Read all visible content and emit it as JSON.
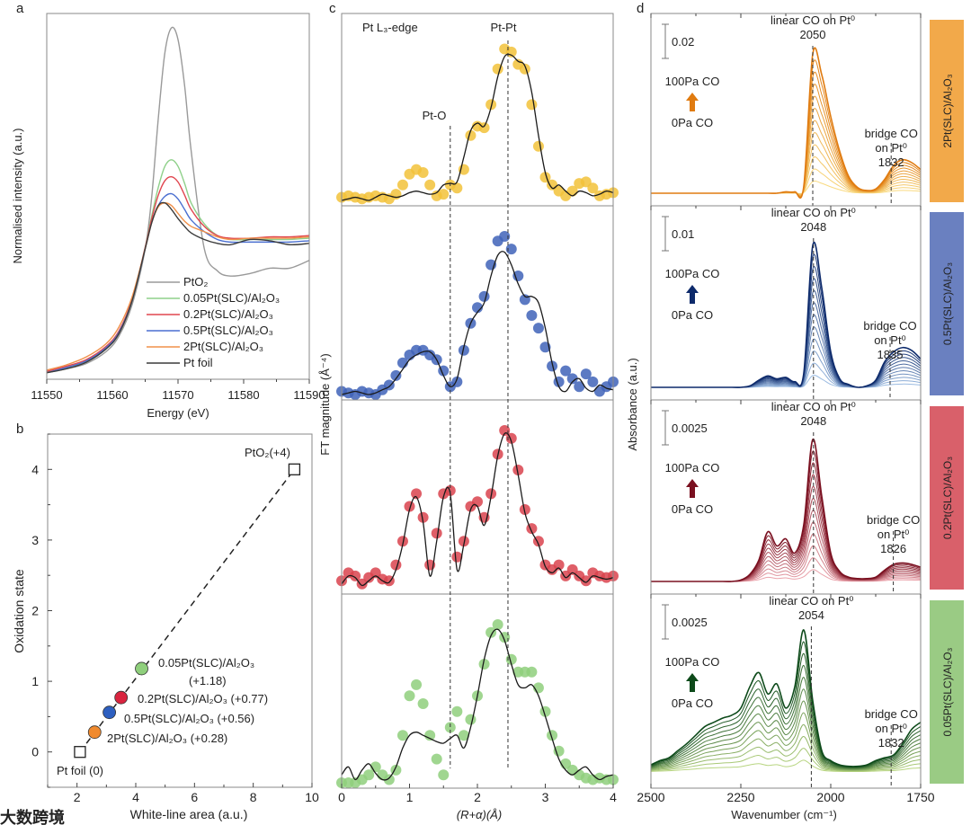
{
  "watermark": "大数跨境",
  "chart_data": [
    {
      "panel": "a",
      "type": "line",
      "xlabel": "Energy (eV)",
      "ylabel": "Normalised intensity (a.u.)",
      "xlim": [
        11550,
        11590
      ],
      "ylim": [
        -0.05,
        2.75
      ],
      "xticks": [
        "11550",
        "11560",
        "11570",
        "11580",
        "11590"
      ],
      "legend_position": "bottom-right",
      "x": [
        11550,
        11553,
        11556,
        11559,
        11561,
        11563,
        11565,
        11566,
        11567,
        11568,
        11569,
        11570,
        11571,
        11572,
        11574,
        11576,
        11578,
        11581,
        11584,
        11587,
        11590
      ],
      "series": [
        {
          "name": "PtO₂",
          "color": "#9a9a9a",
          "values": [
            0,
            0.03,
            0.07,
            0.16,
            0.28,
            0.52,
            0.95,
            1.35,
            1.95,
            2.45,
            2.64,
            2.55,
            2.2,
            1.7,
            0.95,
            0.78,
            0.74,
            0.76,
            0.8,
            0.8,
            0.86
          ]
        },
        {
          "name": "0.05Pt(SLC)/Al₂O₃",
          "color": "#8fd08a",
          "values": [
            0,
            0.04,
            0.09,
            0.19,
            0.31,
            0.55,
            0.96,
            1.2,
            1.42,
            1.58,
            1.63,
            1.58,
            1.45,
            1.3,
            1.14,
            1.05,
            1.02,
            1.02,
            1.02,
            1.02,
            1.03
          ]
        },
        {
          "name": "0.2Pt(SLC)/Al₂O₃",
          "color": "#e0464f",
          "values": [
            0.01,
            0.05,
            0.1,
            0.2,
            0.32,
            0.56,
            0.96,
            1.18,
            1.36,
            1.47,
            1.5,
            1.46,
            1.36,
            1.25,
            1.12,
            1.05,
            1.03,
            1.03,
            1.04,
            1.04,
            1.05
          ]
        },
        {
          "name": "0.5Pt(SLC)/Al₂O₃",
          "color": "#4a6fd0",
          "values": [
            0,
            0.04,
            0.09,
            0.19,
            0.31,
            0.55,
            0.95,
            1.15,
            1.28,
            1.35,
            1.37,
            1.33,
            1.25,
            1.17,
            1.08,
            1.02,
            1.0,
            1.0,
            1.0,
            1.0,
            1.01
          ]
        },
        {
          "name": "2Pt(SLC)/Al₂O₃",
          "color": "#f0904a",
          "values": [
            0.02,
            0.06,
            0.12,
            0.22,
            0.35,
            0.58,
            0.95,
            1.15,
            1.27,
            1.3,
            1.28,
            1.22,
            1.16,
            1.12,
            1.08,
            1.04,
            1.02,
            1.03,
            1.03,
            1.03,
            1.04
          ]
        },
        {
          "name": "Pt foil",
          "color": "#3a3a3a",
          "values": [
            0,
            0.03,
            0.08,
            0.18,
            0.3,
            0.55,
            0.95,
            1.15,
            1.28,
            1.3,
            1.25,
            1.18,
            1.12,
            1.07,
            1.02,
            0.99,
            0.98,
            1.02,
            1.01,
            0.98,
            0.99
          ]
        }
      ]
    },
    {
      "panel": "b",
      "type": "scatter",
      "xlabel": "White-line area (a.u.)",
      "ylabel": "Oxidation state",
      "xlim": [
        1,
        10
      ],
      "ylim": [
        -0.5,
        4.5
      ],
      "xticks": [
        "2",
        "4",
        "6",
        "8",
        "10"
      ],
      "yticks": [
        "0",
        "1",
        "2",
        "3",
        "4"
      ],
      "fit_line": {
        "from": [
          2.1,
          0
        ],
        "to": [
          9.4,
          4
        ],
        "style": "dashed"
      },
      "points": [
        {
          "label": "Pt foil (0)",
          "x": 2.1,
          "y": 0,
          "marker": "square",
          "color": "#222222"
        },
        {
          "label": "2Pt(SLC)/Al₂O₃ (+0.28)",
          "x": 2.6,
          "y": 0.28,
          "marker": "circle",
          "color": "#f08a2e"
        },
        {
          "label": "0.5Pt(SLC)/Al₂O₃ (+0.56)",
          "x": 3.1,
          "y": 0.56,
          "marker": "circle",
          "color": "#2d5fc0"
        },
        {
          "label": "0.2Pt(SLC)/Al₂O₃ (+0.77)",
          "x": 3.5,
          "y": 0.77,
          "marker": "circle",
          "color": "#d9243f"
        },
        {
          "label": "0.05Pt(SLC)/Al₂O₃",
          "label2": "(+1.18)",
          "x": 4.2,
          "y": 1.18,
          "marker": "circle",
          "color": "#8fcf7c"
        },
        {
          "label": "PtO₂(+4)",
          "x": 9.4,
          "y": 4,
          "marker": "square",
          "color": "#222222"
        }
      ]
    },
    {
      "panel": "c",
      "type": "line",
      "xlabel": "(R+α)(Å)",
      "ylabel": "FT magnitude (Å⁻⁴)",
      "xlim": [
        0,
        4
      ],
      "xticks": [
        "0",
        "1",
        "2",
        "3",
        "4"
      ],
      "annotations": {
        "edge": "Pt L₃-edge",
        "pt_pt": "Pt-Pt",
        "pt_o": "Pt-O"
      },
      "reference_lines": [
        1.6,
        2.45
      ],
      "x_step": 0.1,
      "series": [
        {
          "name": "2Pt(SLC)/Al₂O₃",
          "color": "#f2c23a",
          "data": [
            0.02,
            0.03,
            0.02,
            0.01,
            0.02,
            0.03,
            0.02,
            0.01,
            0.04,
            0.1,
            0.17,
            0.2,
            0.18,
            0.1,
            0.03,
            0.04,
            0.1,
            0.08,
            0.2,
            0.42,
            0.48,
            0.47,
            0.62,
            0.85,
            0.98,
            0.96,
            0.88,
            0.85,
            0.62,
            0.35,
            0.15,
            0.1,
            0.06,
            0.03,
            0.06,
            0.11,
            0.12,
            0.08,
            0.03,
            0.04,
            0.05
          ],
          "fit": [
            0,
            0.01,
            0.02,
            0.01,
            0,
            0.02,
            0.04,
            0.03,
            0.02,
            0.03,
            0.05,
            0.06,
            0.05,
            0.04,
            0.05,
            0.1,
            0.11,
            0.12,
            0.28,
            0.45,
            0.5,
            0.48,
            0.6,
            0.8,
            0.93,
            0.94,
            0.9,
            0.87,
            0.7,
            0.42,
            0.18,
            0.08,
            0.1,
            0.06,
            0.03,
            0.06,
            0.05,
            0.03,
            0.04,
            0.06,
            0.05
          ]
        },
        {
          "name": "0.5Pt(SLC)/Al₂O₃",
          "color": "#3f63b8",
          "data": [
            0.02,
            0.01,
            0,
            0.02,
            0.01,
            0,
            0.03,
            0.06,
            0.12,
            0.2,
            0.25,
            0.28,
            0.28,
            0.25,
            0.22,
            0.15,
            0.05,
            0.08,
            0.28,
            0.45,
            0.55,
            0.62,
            0.82,
            0.97,
            1.0,
            0.92,
            0.75,
            0.6,
            0.5,
            0.42,
            0.3,
            0.18,
            0.08,
            0.15,
            0.1,
            0.05,
            0.13,
            0.08,
            0.02,
            0.05,
            0.08
          ],
          "fit": [
            0,
            0.01,
            0.02,
            0.01,
            0,
            0.01,
            0.03,
            0.05,
            0.1,
            0.16,
            0.22,
            0.25,
            0.27,
            0.27,
            0.22,
            0.12,
            0.05,
            0.1,
            0.3,
            0.45,
            0.52,
            0.58,
            0.75,
            0.88,
            0.9,
            0.82,
            0.7,
            0.62,
            0.62,
            0.58,
            0.42,
            0.2,
            0.05,
            0.02,
            0.08,
            0.1,
            0.04,
            0.02,
            0.06,
            0.04,
            0.03
          ]
        },
        {
          "name": "0.2Pt(SLC)/Al₂O₃",
          "color": "#d9434e",
          "data": [
            0.05,
            0.1,
            0.08,
            0.03,
            0.07,
            0.1,
            0.06,
            0.05,
            0.15,
            0.3,
            0.52,
            0.6,
            0.45,
            0.15,
            0.35,
            0.6,
            0.62,
            0.2,
            0.3,
            0.52,
            0.55,
            0.45,
            0.6,
            0.85,
            1.0,
            0.95,
            0.75,
            0.5,
            0.38,
            0.3,
            0.15,
            0.12,
            0.15,
            0.08,
            0.12,
            0.08,
            0.05,
            0.1,
            0.08,
            0.07,
            0.08
          ],
          "fit": [
            0.03,
            0.08,
            0.07,
            0.02,
            0.05,
            0.08,
            0.05,
            0.04,
            0.12,
            0.28,
            0.5,
            0.58,
            0.42,
            0.08,
            0.3,
            0.58,
            0.6,
            0.12,
            0.28,
            0.5,
            0.52,
            0.4,
            0.58,
            0.84,
            0.98,
            0.93,
            0.72,
            0.48,
            0.36,
            0.28,
            0.14,
            0.1,
            0.13,
            0.07,
            0.1,
            0.07,
            0.04,
            0.08,
            0.07,
            0.06,
            0.07
          ]
        },
        {
          "name": "0.05Pt(SLC)/Al₂O₃",
          "color": "#8fcf7c",
          "data": [
            0,
            0,
            0,
            0.02,
            0.05,
            0.1,
            0.05,
            0.02,
            0.08,
            0.3,
            0.55,
            0.62,
            0.5,
            0.3,
            0.15,
            0.05,
            0.35,
            0.45,
            0.3,
            0.4,
            0.55,
            0.75,
            0.95,
            1.0,
            0.92,
            0.78,
            0.7,
            0.7,
            0.7,
            0.6,
            0.45,
            0.3,
            0.2,
            0.12,
            0.08,
            0.05,
            0.03,
            0.02,
            0.03,
            0.02,
            0.02
          ],
          "fit": [
            0.05,
            0.1,
            0.02,
            0.08,
            0.12,
            0.06,
            0.02,
            0.03,
            0.1,
            0.22,
            0.3,
            0.32,
            0.3,
            0.28,
            0.26,
            0.25,
            0.28,
            0.3,
            0.22,
            0.35,
            0.55,
            0.78,
            0.93,
            0.97,
            0.9,
            0.75,
            0.62,
            0.6,
            0.62,
            0.55,
            0.42,
            0.28,
            0.15,
            0.08,
            0.05,
            0.08,
            0.1,
            0.05,
            0.02,
            0.04,
            0.05
          ]
        }
      ]
    },
    {
      "panel": "d",
      "type": "line",
      "xlabel": "Wavenumber (cm⁻¹)",
      "ylabel": "Absorbance (a.u.)",
      "xlim": [
        2500,
        1750
      ],
      "xticks": [
        "2500",
        "2250",
        "2000",
        "1750"
      ],
      "x_step": -25,
      "curves_per_panel": 12,
      "pressure_high": "100Pa CO",
      "pressure_low": "0Pa CO",
      "panels": [
        {
          "sample": "2Pt(SLC)/Al₂O₃",
          "side_color": "#f2a94a",
          "light": "#fbe38a",
          "dark": "#e07b10",
          "scale_bar": "0.02",
          "linear_label": "linear CO on Pt⁰",
          "linear_peak": "2050",
          "linear_wn": 2050,
          "bridge_label": "bridge CO",
          "bridge_on": "on Pt⁰",
          "bridge_peak": "1832",
          "bridge_wn": 1832,
          "top_curve": [
            0,
            0,
            0,
            0,
            0,
            0,
            0,
            0,
            0,
            0,
            0,
            0,
            0,
            0,
            0,
            0.01,
            0.01,
            0.05,
            1.0,
            0.85,
            0.55,
            0.3,
            0.12,
            0.04,
            0.02,
            0.03,
            0.1,
            0.2,
            0.24,
            0.22,
            0.17
          ]
        },
        {
          "sample": "0.5Pt(SLC)/Al₂O₃",
          "side_color": "#6a80c0",
          "light": "#a8c8ec",
          "dark": "#0d2a6b",
          "scale_bar": "0.01",
          "linear_label": "linear CO on Pt⁰",
          "linear_peak": "2048",
          "linear_wn": 2048,
          "bridge_label": "bridge CO",
          "bridge_on": "on Pt⁰",
          "bridge_peak": "1835",
          "bridge_wn": 1835,
          "top_curve": [
            0,
            0,
            0,
            0,
            0,
            0,
            0,
            0,
            0,
            0,
            0,
            0.01,
            0.05,
            0.08,
            0.06,
            0.07,
            0.04,
            0.1,
            1.0,
            0.7,
            0.25,
            0.06,
            0.02,
            0,
            0.01,
            0.05,
            0.18,
            0.25,
            0.28,
            0.26,
            0.2
          ]
        },
        {
          "sample": "0.2Pt(SLC)/Al₂O₃",
          "side_color": "#d9606a",
          "light": "#f4b0b8",
          "dark": "#7a1020",
          "scale_bar": "0.0025",
          "linear_label": "linear CO on Pt⁰",
          "linear_peak": "2048",
          "linear_wn": 2048,
          "bridge_label": "bridge CO",
          "bridge_on": "on Pt⁰",
          "bridge_peak": "1826",
          "bridge_wn": 1826,
          "top_curve": [
            0,
            0,
            0,
            0,
            0,
            0,
            0,
            0,
            0,
            0,
            0.01,
            0.05,
            0.15,
            0.35,
            0.25,
            0.3,
            0.2,
            0.4,
            1.0,
            0.6,
            0.2,
            0.07,
            0.03,
            0.02,
            0.02,
            0.03,
            0.08,
            0.12,
            0.13,
            0.12,
            0.1
          ]
        },
        {
          "sample": "0.05Pt(SLC)/Al₂O₃",
          "side_color": "#9acb84",
          "light": "#c8e28a",
          "dark": "#0d4a1a",
          "scale_bar": "0.0025",
          "linear_label": "linear CO on Pt⁰",
          "linear_peak": "2054",
          "linear_wn": 2054,
          "bridge_label": "bridge CO",
          "bridge_on": "on Pt⁰",
          "bridge_peak": "1832",
          "bridge_wn": 1832,
          "top_curve": [
            0.05,
            0.08,
            0.1,
            0.15,
            0.2,
            0.26,
            0.32,
            0.35,
            0.38,
            0.4,
            0.45,
            0.6,
            0.7,
            0.55,
            0.62,
            0.45,
            0.6,
            1.0,
            0.5,
            0.15,
            0.08,
            0.05,
            0.04,
            0.04,
            0.05,
            0.08,
            0.1,
            0.12,
            0.2,
            0.3,
            0.35
          ]
        }
      ]
    }
  ]
}
